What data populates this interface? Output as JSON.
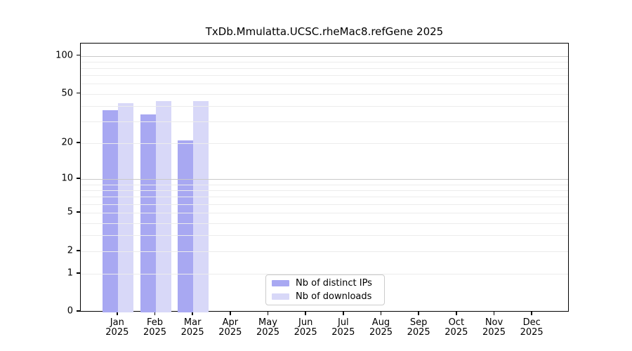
{
  "title": "TxDb.Mmulatta.UCSC.rheMac8.refGene 2025",
  "legend": [
    {
      "label": "Nb of distinct IPs",
      "color": "#a8a8f2"
    },
    {
      "label": "Nb of downloads",
      "color": "#d8d8f8"
    }
  ],
  "yaxis": {
    "tick_values": [
      100,
      50,
      20,
      10,
      5,
      2,
      1,
      0
    ]
  },
  "xaxis": {
    "months": [
      "Jan",
      "Feb",
      "Mar",
      "Apr",
      "May",
      "Jun",
      "Jul",
      "Aug",
      "Sep",
      "Oct",
      "Nov",
      "Dec"
    ],
    "year": "2025"
  },
  "chart_data": {
    "type": "bar",
    "title": "TxDb.Mmulatta.UCSC.rheMac8.refGene 2025",
    "categories": [
      "Jan 2025",
      "Feb 2025",
      "Mar 2025",
      "Apr 2025",
      "May 2025",
      "Jun 2025",
      "Jul 2025",
      "Aug 2025",
      "Sep 2025",
      "Oct 2025",
      "Nov 2025",
      "Dec 2025"
    ],
    "series": [
      {
        "name": "Nb of distinct IPs",
        "color": "#a8a8f2",
        "values": [
          37,
          34,
          21,
          0,
          0,
          0,
          0,
          0,
          0,
          0,
          0,
          0
        ]
      },
      {
        "name": "Nb of downloads",
        "color": "#d8d8f8",
        "values": [
          42,
          44,
          44,
          0,
          0,
          0,
          0,
          0,
          0,
          0,
          0,
          0
        ]
      }
    ],
    "xlabel": "",
    "ylabel": "",
    "yscale": "log1p",
    "ylim": [
      0,
      125
    ],
    "yticks": [
      0,
      1,
      2,
      5,
      10,
      20,
      50,
      100
    ],
    "minor_gridlines": [
      1,
      2,
      3,
      4,
      5,
      6,
      7,
      8,
      9,
      20,
      30,
      40,
      50,
      60,
      70,
      80,
      90
    ],
    "major_gridlines": [
      10,
      100
    ],
    "grid": true,
    "legend_position": "lower center"
  }
}
